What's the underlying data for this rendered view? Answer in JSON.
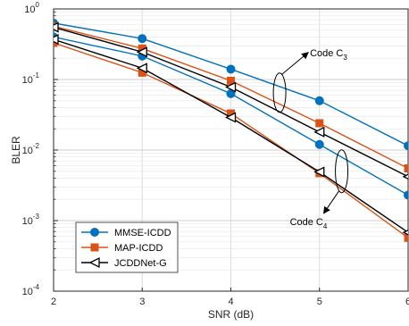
{
  "chart_data": {
    "type": "line",
    "xlabel": "SNR (dB)",
    "ylabel": "BLER",
    "x": [
      2,
      3,
      4,
      5,
      6
    ],
    "x_ticks": [
      "2",
      "3",
      "4",
      "5",
      "6"
    ],
    "y_ticks": [
      {
        "base": "10",
        "exp": "0",
        "value": 1
      },
      {
        "base": "10",
        "exp": "-1",
        "value": 0.1
      },
      {
        "base": "10",
        "exp": "-2",
        "value": 0.01
      },
      {
        "base": "10",
        "exp": "-3",
        "value": 0.001
      },
      {
        "base": "10",
        "exp": "-4",
        "value": 0.0001
      }
    ],
    "xlim": [
      2,
      6
    ],
    "ylim": [
      0.0001,
      1
    ],
    "yscale": "log",
    "grid": true,
    "legend_position": "bottom-left",
    "series": [
      {
        "name": "MMSE-ICDD",
        "code": "C3",
        "color": "#0072BD",
        "marker": "circle",
        "values": [
          0.63,
          0.38,
          0.14,
          0.05,
          0.0115
        ]
      },
      {
        "name": "MMSE-ICDD",
        "code": "C4",
        "color": "#0072BD",
        "marker": "circle",
        "values": [
          0.4,
          0.215,
          0.063,
          0.012,
          0.0023
        ]
      },
      {
        "name": "MAP-ICDD",
        "code": "C3",
        "color": "#D95319",
        "marker": "square",
        "values": [
          0.57,
          0.275,
          0.096,
          0.024,
          0.0055
        ]
      },
      {
        "name": "MAP-ICDD",
        "code": "C4",
        "color": "#D95319",
        "marker": "square",
        "values": [
          0.33,
          0.125,
          0.033,
          0.0047,
          0.00057
        ]
      },
      {
        "name": "JCDDNet-G",
        "code": "C3",
        "color": "#000000",
        "marker": "triangle-left",
        "values": [
          0.55,
          0.245,
          0.078,
          0.018,
          0.0042
        ]
      },
      {
        "name": "JCDDNet-G",
        "code": "C4",
        "color": "#000000",
        "marker": "triangle-left",
        "values": [
          0.37,
          0.145,
          0.029,
          0.0049,
          0.00068
        ]
      }
    ],
    "legend": [
      "MMSE-ICDD",
      "MAP-ICDD",
      "JCDDNet-G"
    ],
    "annotations": [
      {
        "label": "Code C",
        "sub": "3",
        "x": 4.55,
        "y": 0.065
      },
      {
        "label": "Code C",
        "sub": "4",
        "x": 5.25,
        "y": 0.005
      }
    ]
  }
}
